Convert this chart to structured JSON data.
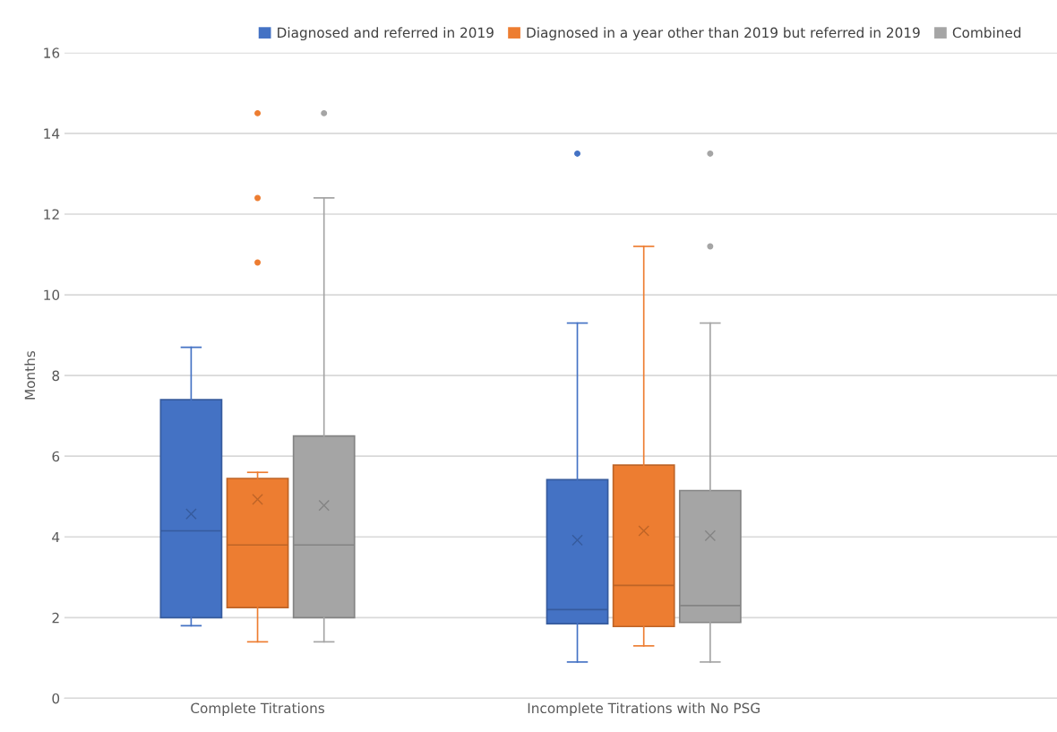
{
  "chart_data": {
    "type": "box",
    "ylabel": "Months",
    "categories": [
      "Complete Titrations",
      "Incomplete Titrations with No PSG"
    ],
    "ylim": [
      0,
      16
    ],
    "yticks": [
      0,
      2,
      4,
      6,
      8,
      10,
      12,
      14,
      16
    ],
    "grid": "y",
    "legend": "top",
    "series": [
      {
        "name": "Diagnosed and referred in 2019",
        "color": "#4472c4",
        "boxes": [
          {
            "low": 1.8,
            "q1": 2.0,
            "median": 4.15,
            "q3": 7.4,
            "high": 8.7,
            "mean": 4.57
          },
          {
            "low": 0.9,
            "q1": 1.85,
            "median": 2.2,
            "q3": 5.42,
            "high": 9.3,
            "mean": 3.92,
            "outliers": [
              13.5
            ]
          }
        ]
      },
      {
        "name": "Diagnosed in a year other than 2019 but referred in 2019",
        "color": "#ed7d31",
        "boxes": [
          {
            "low": 1.4,
            "q1": 2.25,
            "median": 3.8,
            "q3": 5.45,
            "high": 5.6,
            "mean": 4.93,
            "outliers": [
              14.5,
              12.4,
              10.8
            ]
          },
          {
            "low": 1.3,
            "q1": 1.78,
            "median": 2.8,
            "q3": 5.78,
            "high": 11.2,
            "mean": 4.15
          }
        ]
      },
      {
        "name": "Combined",
        "color": "#a5a5a5",
        "boxes": [
          {
            "low": 1.4,
            "q1": 2.0,
            "median": 3.8,
            "q3": 6.5,
            "high": 12.4,
            "mean": 4.78,
            "outliers": [
              14.5
            ]
          },
          {
            "low": 0.9,
            "q1": 1.88,
            "median": 2.3,
            "q3": 5.15,
            "high": 9.3,
            "mean": 4.03,
            "outliers": [
              13.5,
              11.2
            ]
          }
        ]
      }
    ]
  }
}
